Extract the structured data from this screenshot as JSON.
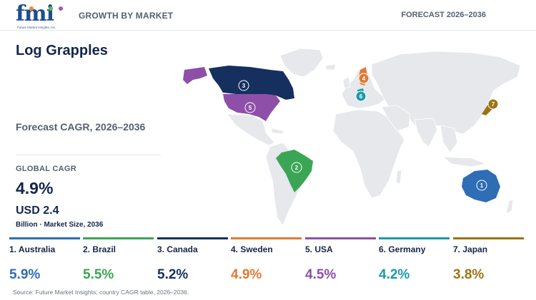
{
  "header": {
    "logo_text": "fmi",
    "logo_subtext": "Future Market Insights, Inc.",
    "title": "GROWTH BY MARKET",
    "forecast": "FORECAST 2026–2036"
  },
  "main": {
    "title": "Log Grapples",
    "cagr_label": "Forecast CAGR, 2026–2036",
    "global_label": "GLOBAL CAGR",
    "global_value": "4.9%",
    "market_value": "USD 2.4",
    "market_note": "Billion · Market Size, 2036"
  },
  "countries": [
    {
      "rank": "1",
      "name": "1. Australia",
      "value": "5.9%",
      "color": "#2f6db5"
    },
    {
      "rank": "2",
      "name": "2. Brazil",
      "value": "5.5%",
      "color": "#3aa655"
    },
    {
      "rank": "3",
      "name": "3. Canada",
      "value": "5.2%",
      "color": "#15305f"
    },
    {
      "rank": "4",
      "name": "4. Sweden",
      "value": "4.9%",
      "color": "#e07a36"
    },
    {
      "rank": "5",
      "name": "5. USA",
      "value": "4.5%",
      "color": "#8e4fa8"
    },
    {
      "rank": "6",
      "name": "6. Germany",
      "value": "4.2%",
      "color": "#1b9aaa"
    },
    {
      "rank": "7",
      "name": "7. Japan",
      "value": "3.8%",
      "color": "#9b7414"
    }
  ],
  "map": {
    "land_color": "#e6e8eb"
  },
  "source": "Source: Future Market Insights; country CAGR table, 2026–2036."
}
